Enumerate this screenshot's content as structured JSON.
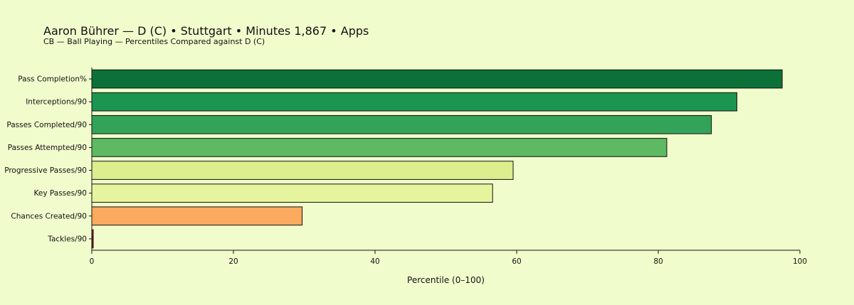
{
  "chart_data": {
    "type": "bar",
    "orientation": "horizontal",
    "title": "Aaron Bührer — D (C) • Stuttgart • Minutes 1,867 • Apps",
    "subtitle": "CB — Ball Playing — Percentiles Compared against D (C)",
    "xlabel": "Percentile (0–100)",
    "ylabel": "",
    "xlim": [
      0,
      100
    ],
    "xticks": [
      0,
      20,
      40,
      60,
      80,
      100
    ],
    "grid": false,
    "categories": [
      "Pass Completion%",
      "Interceptions/90",
      "Passes Completed/90",
      "Passes Attempted/90",
      "Progressive Passes/90",
      "Key Passes/90",
      "Chances Created/90",
      "Tackles/90"
    ],
    "values": [
      97.5,
      91.1,
      87.5,
      81.2,
      59.5,
      56.6,
      29.7,
      0.2
    ],
    "colors": [
      "#0c7138",
      "#1b9550",
      "#34a35a",
      "#5db962",
      "#dcee8e",
      "#e6f49d",
      "#fcaa5f",
      "#a80b26"
    ]
  }
}
